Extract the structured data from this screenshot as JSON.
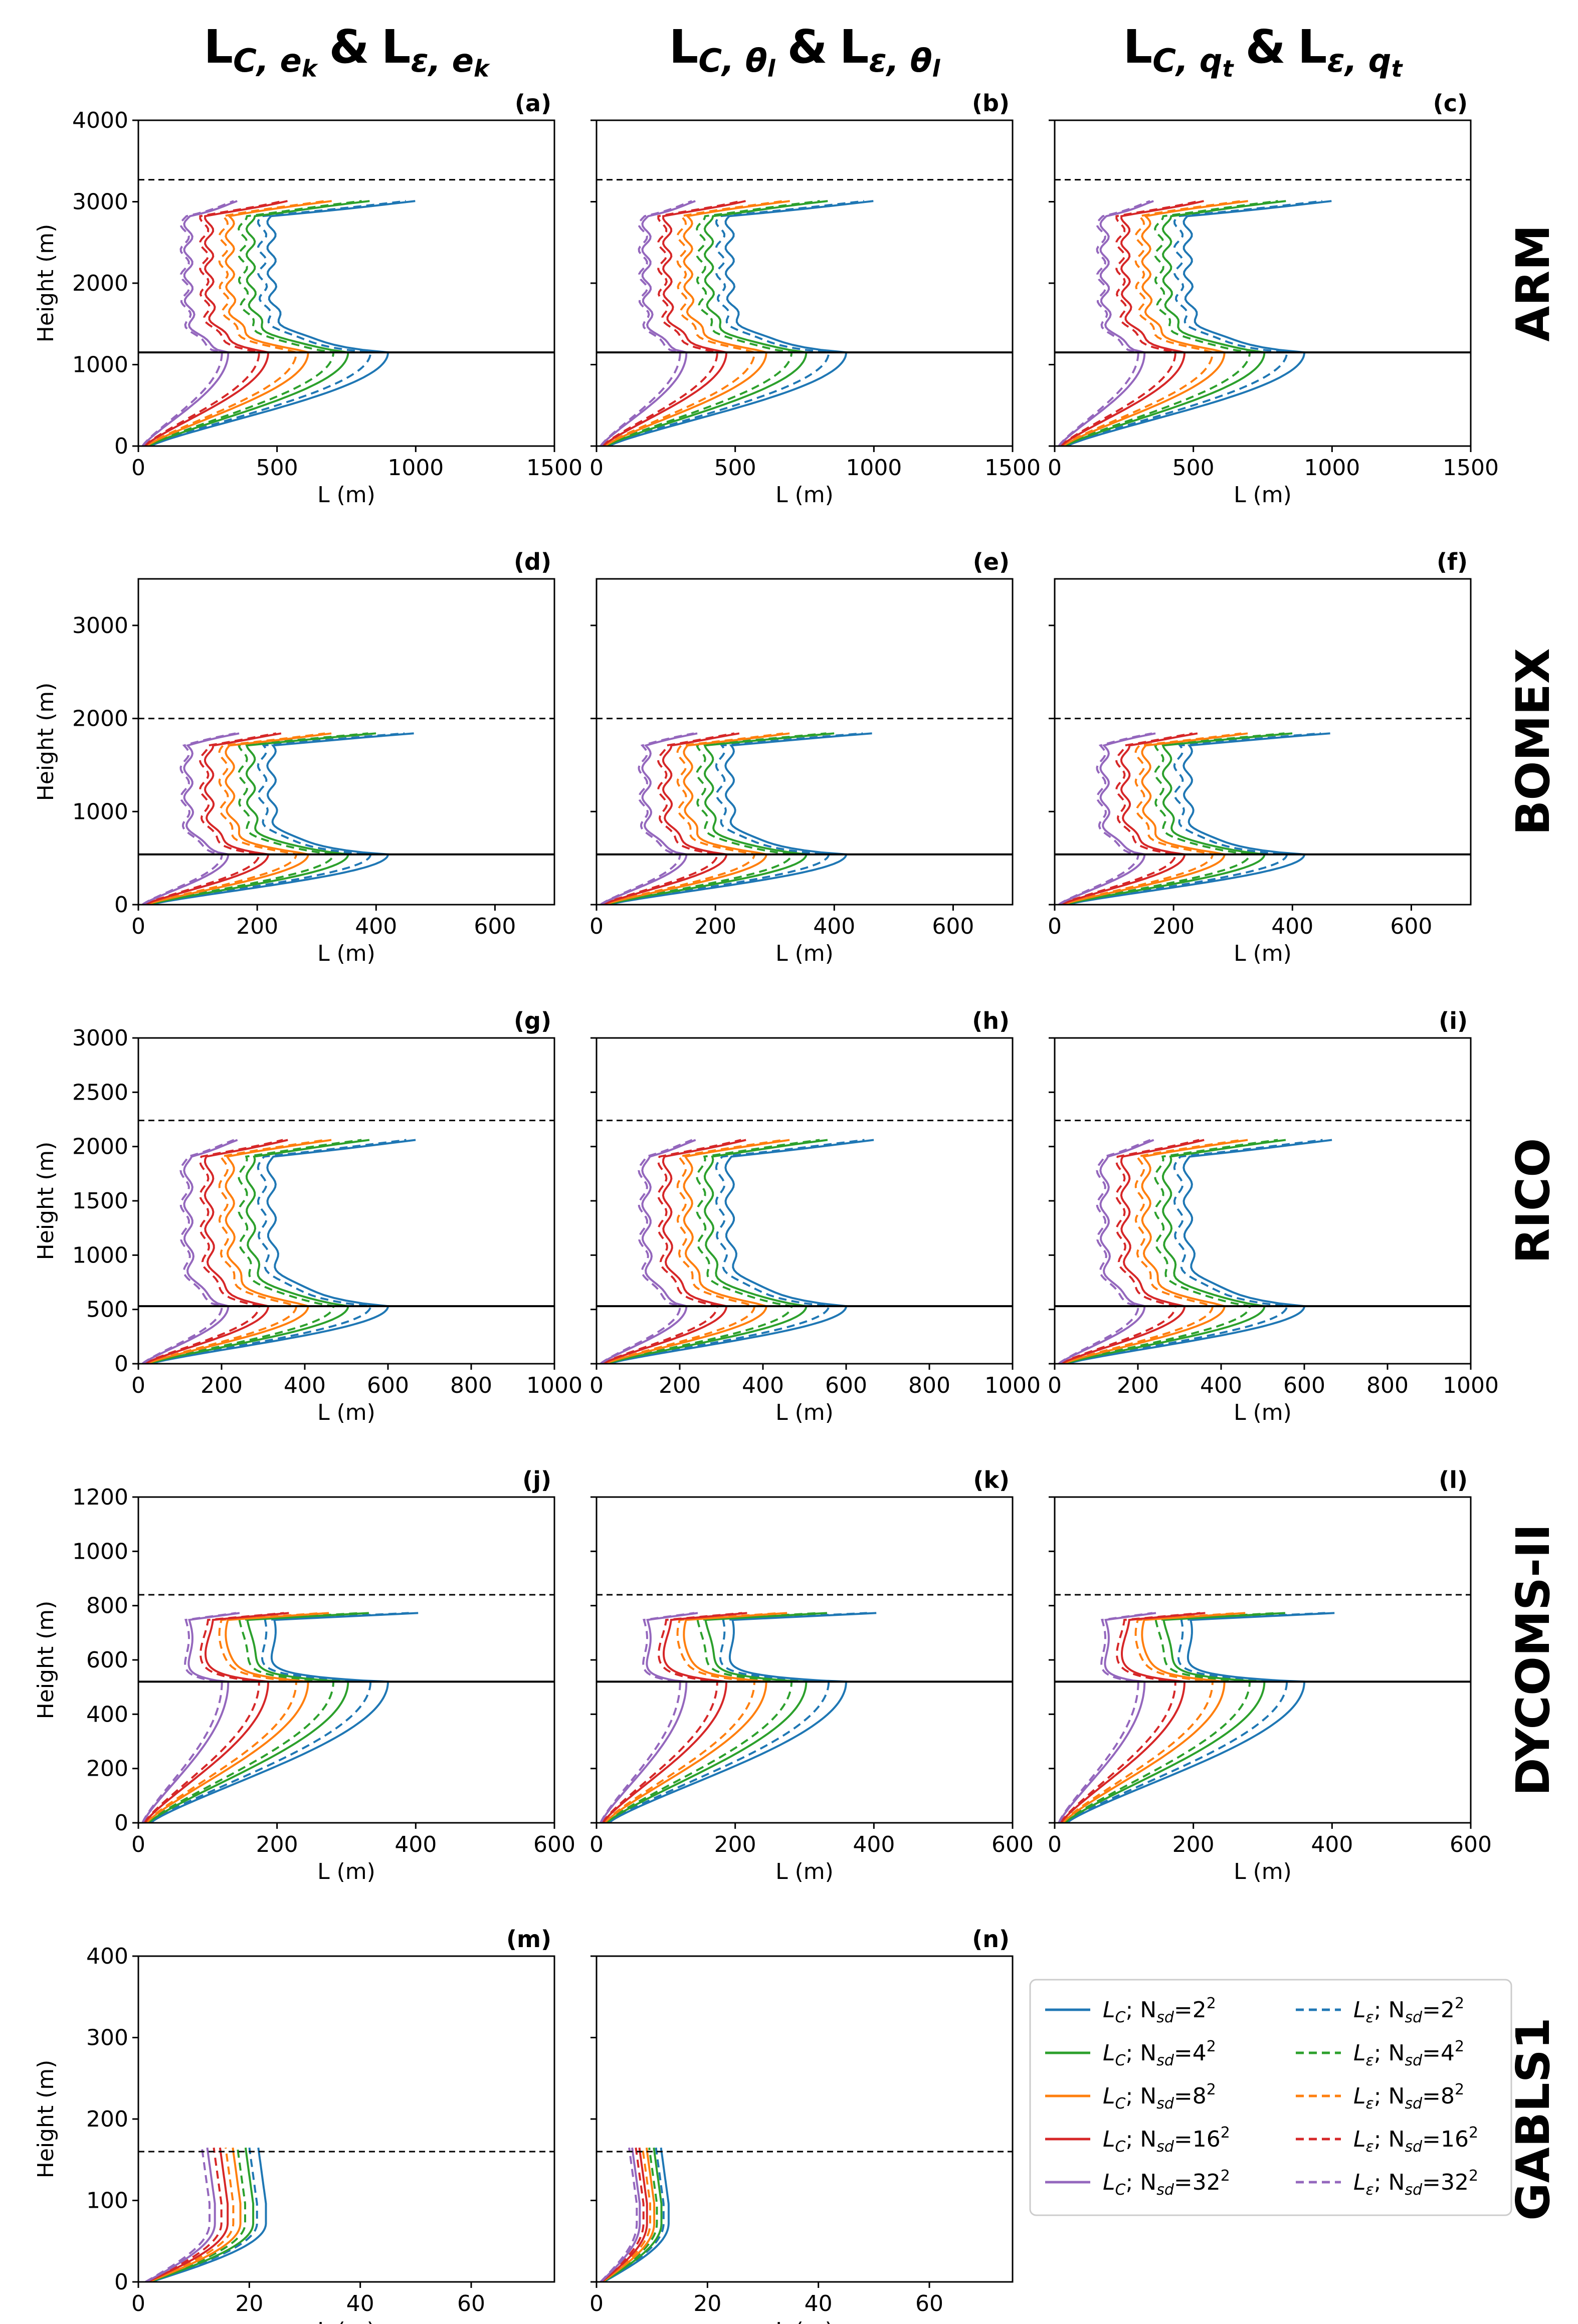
{
  "figure": {
    "column_titles": [
      {
        "main": "L",
        "sub1": "C, e",
        "sub1k": "k",
        "amp": "&",
        "main2": "L",
        "sub2": "ε, e",
        "sub2k": "k"
      },
      {
        "main": "L",
        "sub1": "C, θ",
        "sub1k": "l",
        "amp": "&",
        "main2": "L",
        "sub2": "ε, θ",
        "sub2k": "l"
      },
      {
        "main": "L",
        "sub1": "C, q",
        "sub1k": "t",
        "amp": "&",
        "main2": "L",
        "sub2": "ε, q",
        "sub2k": "t"
      }
    ],
    "row_titles": [
      "ARM",
      "BOMEX",
      "RICO",
      "DYCOMS-II",
      "GABLS1"
    ],
    "colors": {
      "N2": "#1f77b4",
      "N4": "#2ca02c",
      "N8": "#ff7f0e",
      "N16": "#d62728",
      "N32": "#9467bd",
      "ref": "#000000"
    }
  },
  "chart_data": [
    {
      "type": "line",
      "panel": "(a)",
      "case": "ARM",
      "xlabel": "L (m)",
      "ylabel": "Height (m)",
      "xlim": [
        0,
        1500
      ],
      "ylim": [
        0,
        4000
      ],
      "xticks": [
        0,
        500,
        1000,
        1500
      ],
      "yticks": [
        0,
        1000,
        2000,
        3000,
        4000
      ],
      "hline_solid": 1150,
      "hline_dashed": 3270
    },
    {
      "type": "line",
      "panel": "(b)",
      "case": "ARM",
      "xlabel": "L (m)",
      "xlim": [
        0,
        1500
      ],
      "ylim": [
        0,
        4000
      ],
      "xticks": [
        0,
        500,
        1000,
        1500
      ],
      "hline_solid": 1150,
      "hline_dashed": 3270
    },
    {
      "type": "line",
      "panel": "(c)",
      "case": "ARM",
      "xlabel": "L (m)",
      "xlim": [
        0,
        1500
      ],
      "ylim": [
        0,
        4000
      ],
      "xticks": [
        0,
        500,
        1000,
        1500
      ],
      "hline_solid": 1150,
      "hline_dashed": 3270
    },
    {
      "type": "line",
      "panel": "(d)",
      "case": "BOMEX",
      "xlabel": "L (m)",
      "ylabel": "Height (m)",
      "xlim": [
        0,
        700
      ],
      "ylim": [
        0,
        3500
      ],
      "xticks": [
        0,
        200,
        400,
        600
      ],
      "yticks": [
        0,
        1000,
        2000,
        3000
      ],
      "hline_solid": 540,
      "hline_dashed": 2000
    },
    {
      "type": "line",
      "panel": "(e)",
      "case": "BOMEX",
      "xlabel": "L (m)",
      "xlim": [
        0,
        700
      ],
      "ylim": [
        0,
        3500
      ],
      "xticks": [
        0,
        200,
        400,
        600
      ],
      "hline_solid": 540,
      "hline_dashed": 2000
    },
    {
      "type": "line",
      "panel": "(f)",
      "case": "BOMEX",
      "xlabel": "L (m)",
      "xlim": [
        0,
        700
      ],
      "ylim": [
        0,
        3500
      ],
      "xticks": [
        0,
        200,
        400,
        600
      ],
      "hline_solid": 540,
      "hline_dashed": 2000
    },
    {
      "type": "line",
      "panel": "(g)",
      "case": "RICO",
      "xlabel": "L (m)",
      "ylabel": "Height (m)",
      "xlim": [
        0,
        1000
      ],
      "ylim": [
        0,
        3000
      ],
      "xticks": [
        0,
        200,
        400,
        600,
        800,
        1000
      ],
      "yticks": [
        0,
        500,
        1000,
        1500,
        2000,
        2500,
        3000
      ],
      "hline_solid": 530,
      "hline_dashed": 2240
    },
    {
      "type": "line",
      "panel": "(h)",
      "case": "RICO",
      "xlabel": "L (m)",
      "xlim": [
        0,
        1000
      ],
      "ylim": [
        0,
        3000
      ],
      "xticks": [
        0,
        200,
        400,
        600,
        800,
        1000
      ],
      "hline_solid": 530,
      "hline_dashed": 2240
    },
    {
      "type": "line",
      "panel": "(i)",
      "case": "RICO",
      "xlabel": "L (m)",
      "xlim": [
        0,
        1000
      ],
      "ylim": [
        0,
        3000
      ],
      "xticks": [
        0,
        200,
        400,
        600,
        800,
        1000
      ],
      "hline_solid": 530,
      "hline_dashed": 2240
    },
    {
      "type": "line",
      "panel": "(j)",
      "case": "DYCOMS-II",
      "xlabel": "L (m)",
      "ylabel": "Height (m)",
      "xlim": [
        0,
        600
      ],
      "ylim": [
        0,
        1200
      ],
      "xticks": [
        0,
        200,
        400,
        600
      ],
      "yticks": [
        0,
        200,
        400,
        600,
        800,
        1000,
        1200
      ],
      "hline_solid": 520,
      "hline_dashed": 840
    },
    {
      "type": "line",
      "panel": "(k)",
      "case": "DYCOMS-II",
      "xlabel": "L (m)",
      "xlim": [
        0,
        600
      ],
      "ylim": [
        0,
        1200
      ],
      "xticks": [
        0,
        200,
        400,
        600
      ],
      "hline_solid": 520,
      "hline_dashed": 840
    },
    {
      "type": "line",
      "panel": "(l)",
      "case": "DYCOMS-II",
      "xlabel": "L (m)",
      "xlim": [
        0,
        600
      ],
      "ylim": [
        0,
        1200
      ],
      "xticks": [
        0,
        200,
        400,
        600
      ],
      "hline_solid": 520,
      "hline_dashed": 840
    },
    {
      "type": "line",
      "panel": "(m)",
      "case": "GABLS1",
      "xlabel": "L (m)",
      "ylabel": "Height (m)",
      "xlim": [
        0,
        75
      ],
      "ylim": [
        0,
        400
      ],
      "xticks": [
        0,
        20,
        40,
        60
      ],
      "yticks": [
        0,
        100,
        200,
        300,
        400
      ],
      "hline_dashed": 160
    },
    {
      "type": "line",
      "panel": "(n)",
      "case": "GABLS1",
      "xlabel": "L (m)",
      "xlim": [
        0,
        75
      ],
      "ylim": [
        0,
        400
      ],
      "xticks": [
        0,
        20,
        40,
        60
      ],
      "hline_dashed": 160
    }
  ],
  "legend": {
    "position": "right of panel (n)",
    "entries": [
      {
        "label_pre": "L",
        "label_sub": "C",
        "label_mid": "; N",
        "label_sub2": "sd",
        "label_val": "=2",
        "label_sup": "2",
        "color": "#1f77b4",
        "style": "solid"
      },
      {
        "label_pre": "L",
        "label_sub": "C",
        "label_mid": "; N",
        "label_sub2": "sd",
        "label_val": "=4",
        "label_sup": "2",
        "color": "#2ca02c",
        "style": "solid"
      },
      {
        "label_pre": "L",
        "label_sub": "C",
        "label_mid": "; N",
        "label_sub2": "sd",
        "label_val": "=8",
        "label_sup": "2",
        "color": "#ff7f0e",
        "style": "solid"
      },
      {
        "label_pre": "L",
        "label_sub": "C",
        "label_mid": "; N",
        "label_sub2": "sd",
        "label_val": "=16",
        "label_sup": "2",
        "color": "#d62728",
        "style": "solid"
      },
      {
        "label_pre": "L",
        "label_sub": "C",
        "label_mid": "; N",
        "label_sub2": "sd",
        "label_val": "=32",
        "label_sup": "2",
        "color": "#9467bd",
        "style": "solid"
      },
      {
        "label_pre": "L",
        "label_sub": "ε",
        "label_mid": "; N",
        "label_sub2": "sd",
        "label_val": "=2",
        "label_sup": "2",
        "color": "#1f77b4",
        "style": "dashed"
      },
      {
        "label_pre": "L",
        "label_sub": "ε",
        "label_mid": "; N",
        "label_sub2": "sd",
        "label_val": "=4",
        "label_sup": "2",
        "color": "#2ca02c",
        "style": "dashed"
      },
      {
        "label_pre": "L",
        "label_sub": "ε",
        "label_mid": "; N",
        "label_sub2": "sd",
        "label_val": "=8",
        "label_sup": "2",
        "color": "#ff7f0e",
        "style": "dashed"
      },
      {
        "label_pre": "L",
        "label_sub": "ε",
        "label_mid": "; N",
        "label_sub2": "sd",
        "label_val": "=16",
        "label_sup": "2",
        "color": "#d62728",
        "style": "dashed"
      },
      {
        "label_pre": "L",
        "label_sub": "ε",
        "label_mid": "; N",
        "label_sub2": "sd",
        "label_val": "=32",
        "label_sup": "2",
        "color": "#9467bd",
        "style": "dashed"
      }
    ]
  }
}
